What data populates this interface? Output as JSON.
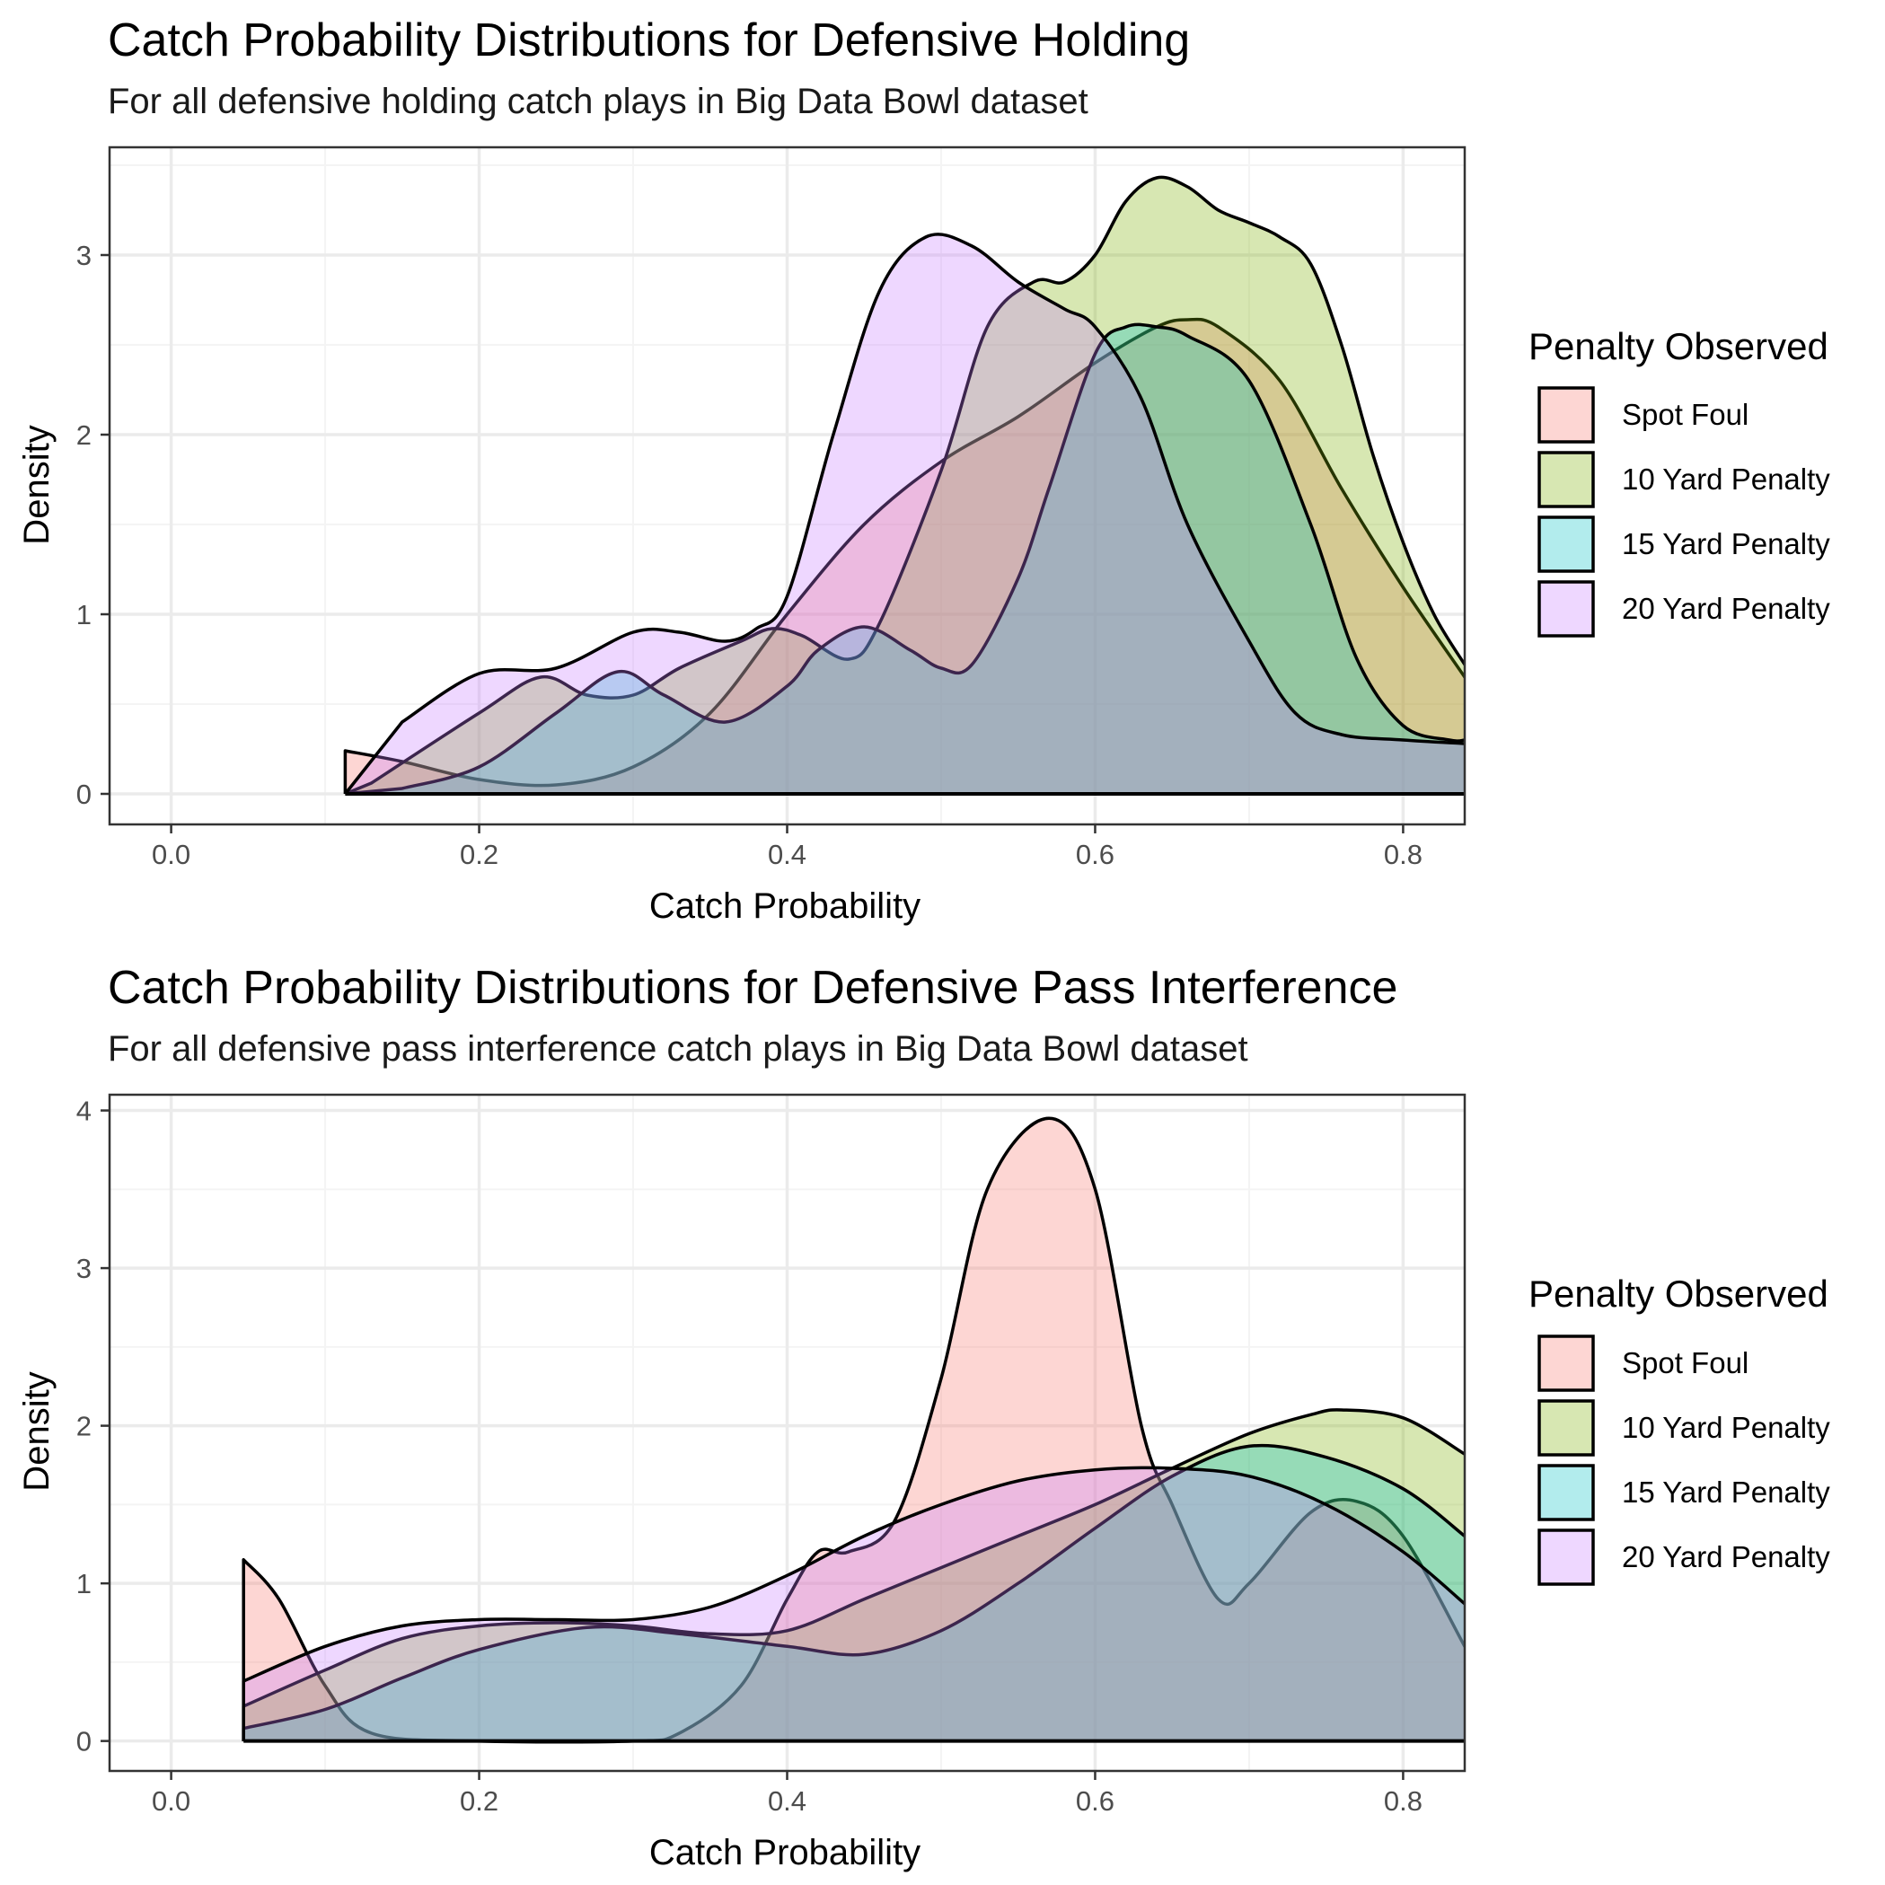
{
  "colors": {
    "spot_foul": "#F8766D",
    "ten_yard": "#7CAE00",
    "fifteen_yard": "#00BFC4",
    "twenty_yard": "#C77CFF",
    "outline": "#000000",
    "grid_major": "#EBEBEB",
    "grid_minor": "#F4F4F4"
  },
  "chart_data": [
    {
      "type": "area",
      "title": "Catch Probability Distributions for Defensive Holding",
      "subtitle": "For all defensive holding catch plays in Big Data Bowl dataset",
      "xlabel": "Catch Probability",
      "ylabel": "Density",
      "xlim": [
        -0.04,
        0.84
      ],
      "ylim": [
        -0.17,
        3.6
      ],
      "x_ticks": [
        0.0,
        0.2,
        0.4,
        0.6,
        0.8
      ],
      "x_tick_labels": [
        "0.0",
        "0.2",
        "0.4",
        "0.6",
        "0.8"
      ],
      "y_ticks": [
        0,
        1,
        2,
        3
      ],
      "y_tick_labels": [
        "0",
        "1",
        "2",
        "3"
      ],
      "grid": true,
      "legend_title": "Penalty Observed",
      "legend_position": "right",
      "series": [
        {
          "name": "Spot Foul",
          "color": "#F8766D",
          "points": [
            [
              0.113,
              0
            ],
            [
              0.113,
              0.24
            ],
            [
              0.15,
              0.18
            ],
            [
              0.2,
              0.08
            ],
            [
              0.25,
              0.05
            ],
            [
              0.3,
              0.15
            ],
            [
              0.35,
              0.45
            ],
            [
              0.4,
              1.0
            ],
            [
              0.45,
              1.5
            ],
            [
              0.5,
              1.85
            ],
            [
              0.55,
              2.1
            ],
            [
              0.6,
              2.4
            ],
            [
              0.64,
              2.6
            ],
            [
              0.66,
              2.64
            ],
            [
              0.68,
              2.6
            ],
            [
              0.72,
              2.3
            ],
            [
              0.76,
              1.7
            ],
            [
              0.8,
              1.15
            ],
            [
              0.84,
              0.65
            ]
          ]
        },
        {
          "name": "10 Yard Penalty",
          "color": "#7CAE00",
          "points": [
            [
              0.113,
              0
            ],
            [
              0.13,
              0.06
            ],
            [
              0.2,
              0.45
            ],
            [
              0.24,
              0.65
            ],
            [
              0.27,
              0.55
            ],
            [
              0.3,
              0.55
            ],
            [
              0.33,
              0.7
            ],
            [
              0.37,
              0.85
            ],
            [
              0.39,
              0.92
            ],
            [
              0.41,
              0.88
            ],
            [
              0.44,
              0.75
            ],
            [
              0.46,
              0.95
            ],
            [
              0.5,
              1.8
            ],
            [
              0.53,
              2.6
            ],
            [
              0.56,
              2.85
            ],
            [
              0.58,
              2.85
            ],
            [
              0.6,
              3.0
            ],
            [
              0.62,
              3.3
            ],
            [
              0.64,
              3.43
            ],
            [
              0.66,
              3.38
            ],
            [
              0.68,
              3.25
            ],
            [
              0.7,
              3.18
            ],
            [
              0.72,
              3.1
            ],
            [
              0.74,
              2.95
            ],
            [
              0.76,
              2.5
            ],
            [
              0.78,
              1.9
            ],
            [
              0.8,
              1.4
            ],
            [
              0.82,
              1.0
            ],
            [
              0.84,
              0.72
            ]
          ]
        },
        {
          "name": "15 Yard Penalty",
          "color": "#00BFC4",
          "points": [
            [
              0.113,
              0
            ],
            [
              0.15,
              0.03
            ],
            [
              0.2,
              0.15
            ],
            [
              0.25,
              0.45
            ],
            [
              0.29,
              0.68
            ],
            [
              0.32,
              0.55
            ],
            [
              0.36,
              0.4
            ],
            [
              0.4,
              0.6
            ],
            [
              0.42,
              0.8
            ],
            [
              0.45,
              0.93
            ],
            [
              0.48,
              0.8
            ],
            [
              0.5,
              0.7
            ],
            [
              0.52,
              0.72
            ],
            [
              0.55,
              1.2
            ],
            [
              0.57,
              1.7
            ],
            [
              0.6,
              2.45
            ],
            [
              0.62,
              2.6
            ],
            [
              0.64,
              2.6
            ],
            [
              0.66,
              2.55
            ],
            [
              0.7,
              2.3
            ],
            [
              0.74,
              1.5
            ],
            [
              0.77,
              0.75
            ],
            [
              0.8,
              0.38
            ],
            [
              0.83,
              0.3
            ],
            [
              0.84,
              0.3
            ]
          ]
        },
        {
          "name": "20 Yard Penalty",
          "color": "#C77CFF",
          "points": [
            [
              0.113,
              0
            ],
            [
              0.15,
              0.4
            ],
            [
              0.2,
              0.67
            ],
            [
              0.25,
              0.7
            ],
            [
              0.3,
              0.9
            ],
            [
              0.33,
              0.9
            ],
            [
              0.36,
              0.85
            ],
            [
              0.38,
              0.92
            ],
            [
              0.4,
              1.1
            ],
            [
              0.43,
              2.0
            ],
            [
              0.46,
              2.8
            ],
            [
              0.49,
              3.1
            ],
            [
              0.52,
              3.05
            ],
            [
              0.55,
              2.85
            ],
            [
              0.58,
              2.7
            ],
            [
              0.6,
              2.6
            ],
            [
              0.63,
              2.2
            ],
            [
              0.66,
              1.5
            ],
            [
              0.7,
              0.85
            ],
            [
              0.73,
              0.45
            ],
            [
              0.76,
              0.33
            ],
            [
              0.8,
              0.3
            ],
            [
              0.84,
              0.28
            ]
          ]
        }
      ]
    },
    {
      "type": "area",
      "title": "Catch Probability Distributions for Defensive Pass Interference",
      "subtitle": "For all defensive pass interference catch plays in Big Data Bowl dataset",
      "xlabel": "Catch Probability",
      "ylabel": "Density",
      "xlim": [
        -0.04,
        0.84
      ],
      "ylim": [
        -0.19,
        4.1
      ],
      "x_ticks": [
        0.0,
        0.2,
        0.4,
        0.6,
        0.8
      ],
      "x_tick_labels": [
        "0.0",
        "0.2",
        "0.4",
        "0.6",
        "0.8"
      ],
      "y_ticks": [
        0,
        1,
        2,
        3,
        4
      ],
      "y_tick_labels": [
        "0",
        "1",
        "2",
        "3",
        "4"
      ],
      "grid": true,
      "legend_title": "Penalty Observed",
      "legend_position": "right",
      "series": [
        {
          "name": "Spot Foul",
          "color": "#F8766D",
          "points": [
            [
              0.047,
              0
            ],
            [
              0.047,
              1.15
            ],
            [
              0.07,
              0.9
            ],
            [
              0.1,
              0.35
            ],
            [
              0.13,
              0.05
            ],
            [
              0.2,
              0
            ],
            [
              0.3,
              0
            ],
            [
              0.33,
              0.05
            ],
            [
              0.37,
              0.35
            ],
            [
              0.4,
              0.9
            ],
            [
              0.42,
              1.2
            ],
            [
              0.44,
              1.2
            ],
            [
              0.47,
              1.4
            ],
            [
              0.5,
              2.3
            ],
            [
              0.53,
              3.5
            ],
            [
              0.57,
              3.95
            ],
            [
              0.6,
              3.5
            ],
            [
              0.63,
              2.0
            ],
            [
              0.65,
              1.5
            ],
            [
              0.68,
              0.9
            ],
            [
              0.7,
              1.0
            ],
            [
              0.74,
              1.45
            ],
            [
              0.77,
              1.52
            ],
            [
              0.8,
              1.3
            ],
            [
              0.84,
              0.6
            ]
          ]
        },
        {
          "name": "10 Yard Penalty",
          "color": "#7CAE00",
          "points": [
            [
              0.047,
              0
            ],
            [
              0.047,
              0.22
            ],
            [
              0.1,
              0.45
            ],
            [
              0.15,
              0.65
            ],
            [
              0.2,
              0.73
            ],
            [
              0.25,
              0.75
            ],
            [
              0.3,
              0.73
            ],
            [
              0.35,
              0.68
            ],
            [
              0.4,
              0.7
            ],
            [
              0.45,
              0.9
            ],
            [
              0.5,
              1.1
            ],
            [
              0.55,
              1.3
            ],
            [
              0.6,
              1.5
            ],
            [
              0.65,
              1.73
            ],
            [
              0.7,
              1.95
            ],
            [
              0.74,
              2.07
            ],
            [
              0.76,
              2.1
            ],
            [
              0.8,
              2.05
            ],
            [
              0.84,
              1.82
            ]
          ]
        },
        {
          "name": "15 Yard Penalty",
          "color": "#00BFC4",
          "points": [
            [
              0.047,
              0
            ],
            [
              0.047,
              0.08
            ],
            [
              0.1,
              0.2
            ],
            [
              0.15,
              0.4
            ],
            [
              0.2,
              0.58
            ],
            [
              0.27,
              0.72
            ],
            [
              0.33,
              0.68
            ],
            [
              0.4,
              0.6
            ],
            [
              0.45,
              0.55
            ],
            [
              0.5,
              0.7
            ],
            [
              0.55,
              1.0
            ],
            [
              0.6,
              1.35
            ],
            [
              0.65,
              1.68
            ],
            [
              0.7,
              1.87
            ],
            [
              0.75,
              1.8
            ],
            [
              0.8,
              1.6
            ],
            [
              0.84,
              1.3
            ]
          ]
        },
        {
          "name": "20 Yard Penalty",
          "color": "#C77CFF",
          "points": [
            [
              0.047,
              0
            ],
            [
              0.047,
              0.38
            ],
            [
              0.1,
              0.6
            ],
            [
              0.15,
              0.73
            ],
            [
              0.2,
              0.77
            ],
            [
              0.25,
              0.77
            ],
            [
              0.3,
              0.77
            ],
            [
              0.35,
              0.85
            ],
            [
              0.4,
              1.05
            ],
            [
              0.45,
              1.3
            ],
            [
              0.5,
              1.5
            ],
            [
              0.55,
              1.65
            ],
            [
              0.6,
              1.72
            ],
            [
              0.65,
              1.73
            ],
            [
              0.7,
              1.68
            ],
            [
              0.75,
              1.5
            ],
            [
              0.8,
              1.2
            ],
            [
              0.84,
              0.87
            ]
          ]
        }
      ]
    }
  ]
}
